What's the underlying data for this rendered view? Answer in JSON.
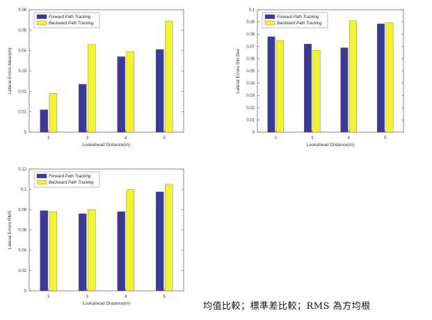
{
  "figure_caption": "均值比較；標準差比較；RMS 為方均根",
  "colors": {
    "forward": "#3b3a96",
    "backward": "#f2f233",
    "axis": "#555555"
  },
  "chart_data": [
    {
      "type": "bar",
      "categories": [
        "2",
        "3",
        "4",
        "5"
      ],
      "series": [
        {
          "name": "Forward Path Tracking",
          "values": [
            0.011,
            0.0235,
            0.037,
            0.0405
          ]
        },
        {
          "name": "Backward Path Tracking",
          "values": [
            0.019,
            0.043,
            0.0395,
            0.0545
          ]
        }
      ],
      "xlabel": "Lookahead Distance(m)",
      "ylabel": "Lateral Errors Mean(m)",
      "ylim": [
        0,
        0.06
      ],
      "yticks": [
        "0",
        "0.01",
        "0.02",
        "0.03",
        "0.04",
        "0.05",
        "0.06"
      ],
      "legend": "top-left",
      "grid": false
    },
    {
      "type": "bar",
      "categories": [
        "2",
        "3",
        "4",
        "5"
      ],
      "series": [
        {
          "name": "Forward Path Tracking",
          "values": [
            0.078,
            0.072,
            0.069,
            0.0885
          ]
        },
        {
          "name": "Backward Path Tracking",
          "values": [
            0.075,
            0.067,
            0.091,
            0.0895
          ]
        }
      ],
      "xlabel": "Lookahead Distance(m)",
      "ylabel": "Lateral Errors Std Dev",
      "ylim": [
        0,
        0.1
      ],
      "yticks": [
        "0",
        "0.01",
        "0.02",
        "0.03",
        "0.04",
        "0.05",
        "0.06",
        "0.07",
        "0.08",
        "0.09",
        "0.1"
      ],
      "legend": "top-left",
      "grid": false
    },
    {
      "type": "bar",
      "categories": [
        "2",
        "3",
        "4",
        "5"
      ],
      "series": [
        {
          "name": "Forward Path Tracking",
          "values": [
            0.079,
            0.076,
            0.078,
            0.0975
          ]
        },
        {
          "name": "Backward Path Tracking",
          "values": [
            0.078,
            0.08,
            0.1,
            0.105
          ]
        }
      ],
      "xlabel": "Lookahead Distance(m)",
      "ylabel": "Lateral Errors RMS",
      "ylim": [
        0,
        0.12
      ],
      "yticks": [
        "0",
        "0.02",
        "0.04",
        "0.06",
        "0.08",
        "0.1",
        "0.12"
      ],
      "legend": "top-left",
      "grid": false
    }
  ]
}
